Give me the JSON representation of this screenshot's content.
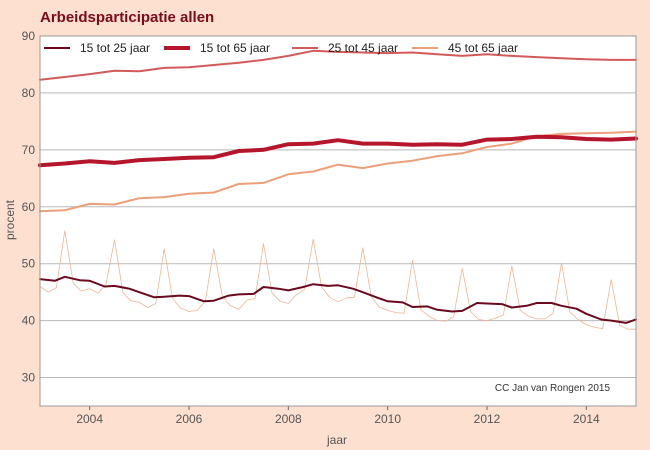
{
  "chart_data": {
    "type": "line",
    "title": "Arbeidsparticipatie allen",
    "xlabel": "jaar",
    "ylabel": "procent",
    "xlim": [
      2003.0,
      2015.0
    ],
    "ylim": [
      25,
      90
    ],
    "x_ticks": [
      2004,
      2006,
      2008,
      2010,
      2012,
      2014
    ],
    "y_ticks": [
      30,
      40,
      50,
      60,
      70,
      80,
      90
    ],
    "grid": "horizontal",
    "legend_position": "top",
    "annotation": "CC Jan van Rongen 2015",
    "series": [
      {
        "name": "15 tot 25 jaar",
        "color": "#6b0a1e",
        "width": 2,
        "x": [
          2003.0,
          2003.3,
          2003.5,
          2003.8,
          2004.0,
          2004.3,
          2004.5,
          2004.8,
          2005.0,
          2005.3,
          2005.5,
          2005.8,
          2006.0,
          2006.3,
          2006.5,
          2006.8,
          2007.0,
          2007.3,
          2007.5,
          2007.8,
          2008.0,
          2008.3,
          2008.5,
          2008.8,
          2009.0,
          2009.3,
          2009.5,
          2009.8,
          2010.0,
          2010.3,
          2010.5,
          2010.8,
          2011.0,
          2011.3,
          2011.5,
          2011.8,
          2012.0,
          2012.3,
          2012.5,
          2012.8,
          2013.0,
          2013.3,
          2013.5,
          2013.8,
          2014.0,
          2014.3,
          2014.5,
          2014.8,
          2015.0
        ],
        "values": [
          47.3,
          47.0,
          47.7,
          47.1,
          47.0,
          46.0,
          46.1,
          45.6,
          45.0,
          44.1,
          44.2,
          44.4,
          44.3,
          43.4,
          43.5,
          44.4,
          44.6,
          44.7,
          45.9,
          45.6,
          45.3,
          45.9,
          46.4,
          46.1,
          46.2,
          45.6,
          45.0,
          44.0,
          43.4,
          43.2,
          42.4,
          42.5,
          41.9,
          41.6,
          41.7,
          43.1,
          43.0,
          42.9,
          42.3,
          42.6,
          43.1,
          43.1,
          42.6,
          42.1,
          41.2,
          40.2,
          40.0,
          39.6,
          40.2
        ]
      },
      {
        "name": "15 tot 65 jaar",
        "color": "#b5162b",
        "width": 4,
        "x": [
          2003.0,
          2003.5,
          2004.0,
          2004.5,
          2005.0,
          2005.5,
          2006.0,
          2006.5,
          2007.0,
          2007.5,
          2008.0,
          2008.5,
          2009.0,
          2009.5,
          2010.0,
          2010.5,
          2011.0,
          2011.5,
          2012.0,
          2012.5,
          2013.0,
          2013.5,
          2014.0,
          2014.5,
          2015.0
        ],
        "values": [
          67.3,
          67.6,
          68.0,
          67.7,
          68.2,
          68.4,
          68.6,
          68.7,
          69.8,
          70.0,
          71.0,
          71.1,
          71.7,
          71.1,
          71.1,
          70.9,
          71.0,
          70.9,
          71.8,
          71.9,
          72.3,
          72.2,
          71.9,
          71.8,
          72.0
        ]
      },
      {
        "name": "25 tot 45 jaar",
        "color": "#d35a5a",
        "width": 2,
        "x": [
          2003.0,
          2003.5,
          2004.0,
          2004.5,
          2005.0,
          2005.5,
          2006.0,
          2006.5,
          2007.0,
          2007.5,
          2008.0,
          2008.5,
          2009.0,
          2009.5,
          2010.0,
          2010.5,
          2011.0,
          2011.5,
          2012.0,
          2012.5,
          2013.0,
          2013.5,
          2014.0,
          2014.5,
          2015.0
        ],
        "values": [
          82.3,
          82.8,
          83.3,
          83.9,
          83.8,
          84.4,
          84.5,
          84.9,
          85.3,
          85.8,
          86.5,
          87.4,
          87.2,
          87.1,
          87.0,
          87.1,
          86.8,
          86.5,
          86.8,
          86.5,
          86.3,
          86.1,
          85.9,
          85.8,
          85.8
        ]
      },
      {
        "name": "45 tot 65 jaar",
        "color": "#eba07a",
        "width": 2,
        "x": [
          2003.0,
          2003.5,
          2004.0,
          2004.5,
          2005.0,
          2005.5,
          2006.0,
          2006.5,
          2007.0,
          2007.5,
          2008.0,
          2008.5,
          2009.0,
          2009.5,
          2010.0,
          2010.5,
          2011.0,
          2011.5,
          2012.0,
          2012.5,
          2013.0,
          2013.5,
          2014.0,
          2014.5,
          2015.0
        ],
        "values": [
          59.2,
          59.4,
          60.5,
          60.4,
          61.5,
          61.7,
          62.3,
          62.5,
          64.0,
          64.2,
          65.7,
          66.2,
          67.4,
          66.8,
          67.6,
          68.1,
          68.9,
          69.4,
          70.5,
          71.1,
          72.4,
          72.8,
          72.9,
          73.0,
          73.2
        ]
      },
      {
        "color": "#f0b594",
        "width": 0.8,
        "x": [
          2003.0,
          2003.17,
          2003.33,
          2003.5,
          2003.67,
          2003.83,
          2004.0,
          2004.17,
          2004.33,
          2004.5,
          2004.67,
          2004.83,
          2005.0,
          2005.17,
          2005.33,
          2005.5,
          2005.67,
          2005.83,
          2006.0,
          2006.17,
          2006.33,
          2006.5,
          2006.67,
          2006.83,
          2007.0,
          2007.17,
          2007.33,
          2007.5,
          2007.67,
          2007.83,
          2008.0,
          2008.17,
          2008.33,
          2008.5,
          2008.67,
          2008.83,
          2009.0,
          2009.17,
          2009.33,
          2009.5,
          2009.67,
          2009.83,
          2010.0,
          2010.17,
          2010.33,
          2010.5,
          2010.67,
          2010.83,
          2011.0,
          2011.17,
          2011.33,
          2011.5,
          2011.67,
          2011.83,
          2012.0,
          2012.17,
          2012.33,
          2012.5,
          2012.67,
          2012.83,
          2013.0,
          2013.17,
          2013.33,
          2013.5,
          2013.67,
          2013.83,
          2014.0,
          2014.17,
          2014.33,
          2014.5,
          2014.67,
          2014.83,
          2015.0
        ],
        "values": [
          46.0,
          45.0,
          45.8,
          55.8,
          46.5,
          45.2,
          45.6,
          44.8,
          46.5,
          54.2,
          44.9,
          43.5,
          43.2,
          42.3,
          43.0,
          52.6,
          43.9,
          42.2,
          41.6,
          41.8,
          43.5,
          52.6,
          44.3,
          42.6,
          42.0,
          43.6,
          43.9,
          53.5,
          44.9,
          43.4,
          43.0,
          44.6,
          45.5,
          54.3,
          45.9,
          44.1,
          43.3,
          44.0,
          44.1,
          52.8,
          44.2,
          42.4,
          41.8,
          41.4,
          41.3,
          50.6,
          41.9,
          40.8,
          40.0,
          39.9,
          40.7,
          49.2,
          41.6,
          40.2,
          40.0,
          40.4,
          41.0,
          49.6,
          41.8,
          40.8,
          40.3,
          40.3,
          41.3,
          50.1,
          41.5,
          40.2,
          39.3,
          38.8,
          38.6,
          47.2,
          39.2,
          38.5,
          38.5
        ]
      }
    ]
  }
}
